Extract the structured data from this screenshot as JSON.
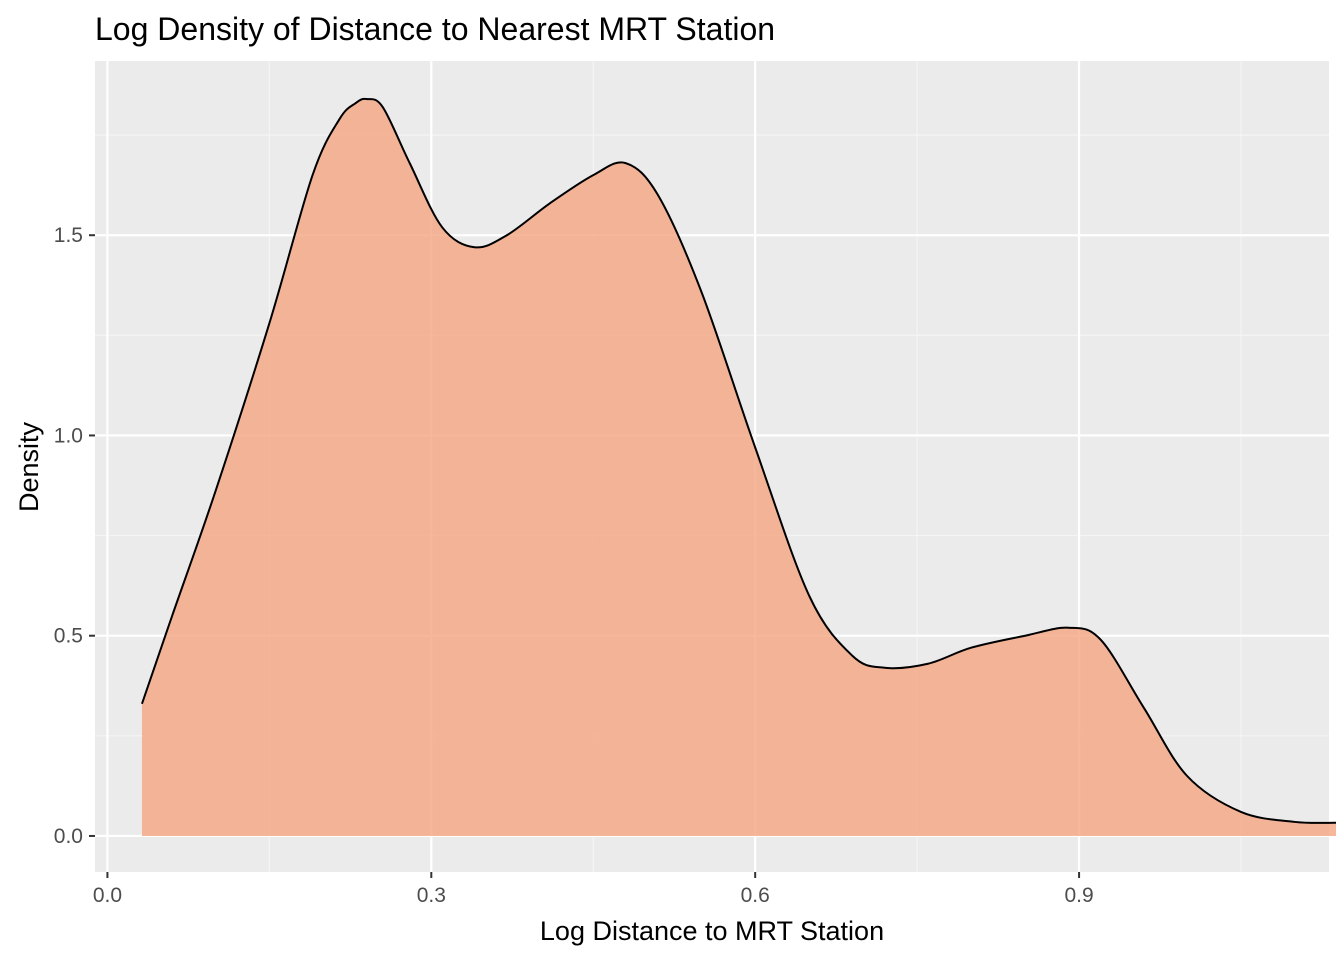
{
  "chart_data": {
    "type": "area",
    "title": "Log Density of Distance to Nearest MRT Station",
    "xlabel": "Log Distance to MRT Station",
    "ylabel": "Density",
    "xlim": [
      -0.0115,
      1.1315
    ],
    "ylim": [
      -0.09,
      1.935
    ],
    "x_ticks": [
      0.0,
      0.3,
      0.6,
      0.9
    ],
    "x_tick_labels": [
      "0.0",
      "0.3",
      "0.6",
      "0.9"
    ],
    "y_ticks": [
      0.0,
      0.5,
      1.0,
      1.5
    ],
    "y_tick_labels": [
      "0.0",
      "0.5",
      "1.0",
      "1.5"
    ],
    "grid": true,
    "legend": "none",
    "x": [
      0.032,
      0.06,
      0.1,
      0.15,
      0.19,
      0.215,
      0.23,
      0.24,
      0.255,
      0.28,
      0.31,
      0.34,
      0.37,
      0.41,
      0.45,
      0.48,
      0.51,
      0.55,
      0.6,
      0.65,
      0.69,
      0.72,
      0.76,
      0.8,
      0.85,
      0.89,
      0.92,
      0.96,
      1.0,
      1.05,
      1.1,
      1.138
    ],
    "y": [
      0.33,
      0.55,
      0.86,
      1.28,
      1.65,
      1.79,
      1.83,
      1.84,
      1.82,
      1.68,
      1.52,
      1.47,
      1.5,
      1.58,
      1.65,
      1.68,
      1.6,
      1.36,
      0.97,
      0.6,
      0.45,
      0.42,
      0.43,
      0.47,
      0.5,
      0.52,
      0.49,
      0.32,
      0.15,
      0.06,
      0.035,
      0.033
    ],
    "colors": {
      "fill": "#F4A582",
      "fill_opacity": 0.8,
      "line": "#000000",
      "panel": "#EBEBEB",
      "grid_major": "#FFFFFF",
      "grid_minor": "#F5F5F5",
      "tick_text": "#4D4D4D"
    }
  }
}
